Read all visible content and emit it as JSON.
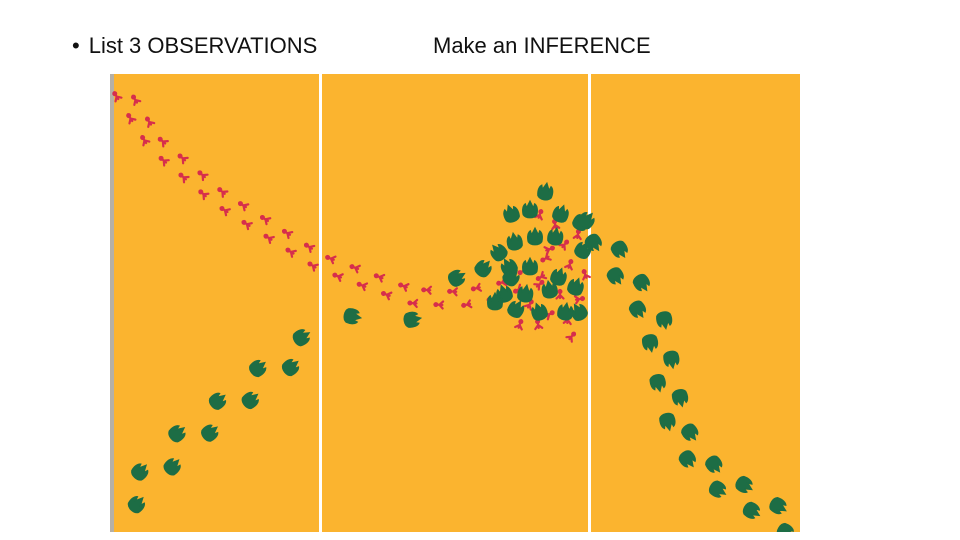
{
  "slide": {
    "observations_heading": "List 3 OBSERVATIONS",
    "bullet": "•",
    "inference_heading": "Make an INFERENCE"
  },
  "figure": {
    "description_icon": "dinosaur-footprints-icon",
    "panel_count": 3,
    "colors": {
      "background": "#FBB42F",
      "divider": "#FFFFFF",
      "left_edge": "#B5B0A6",
      "small_tracks": "#D62E4C",
      "large_tracks": "#1D6D45"
    }
  }
}
